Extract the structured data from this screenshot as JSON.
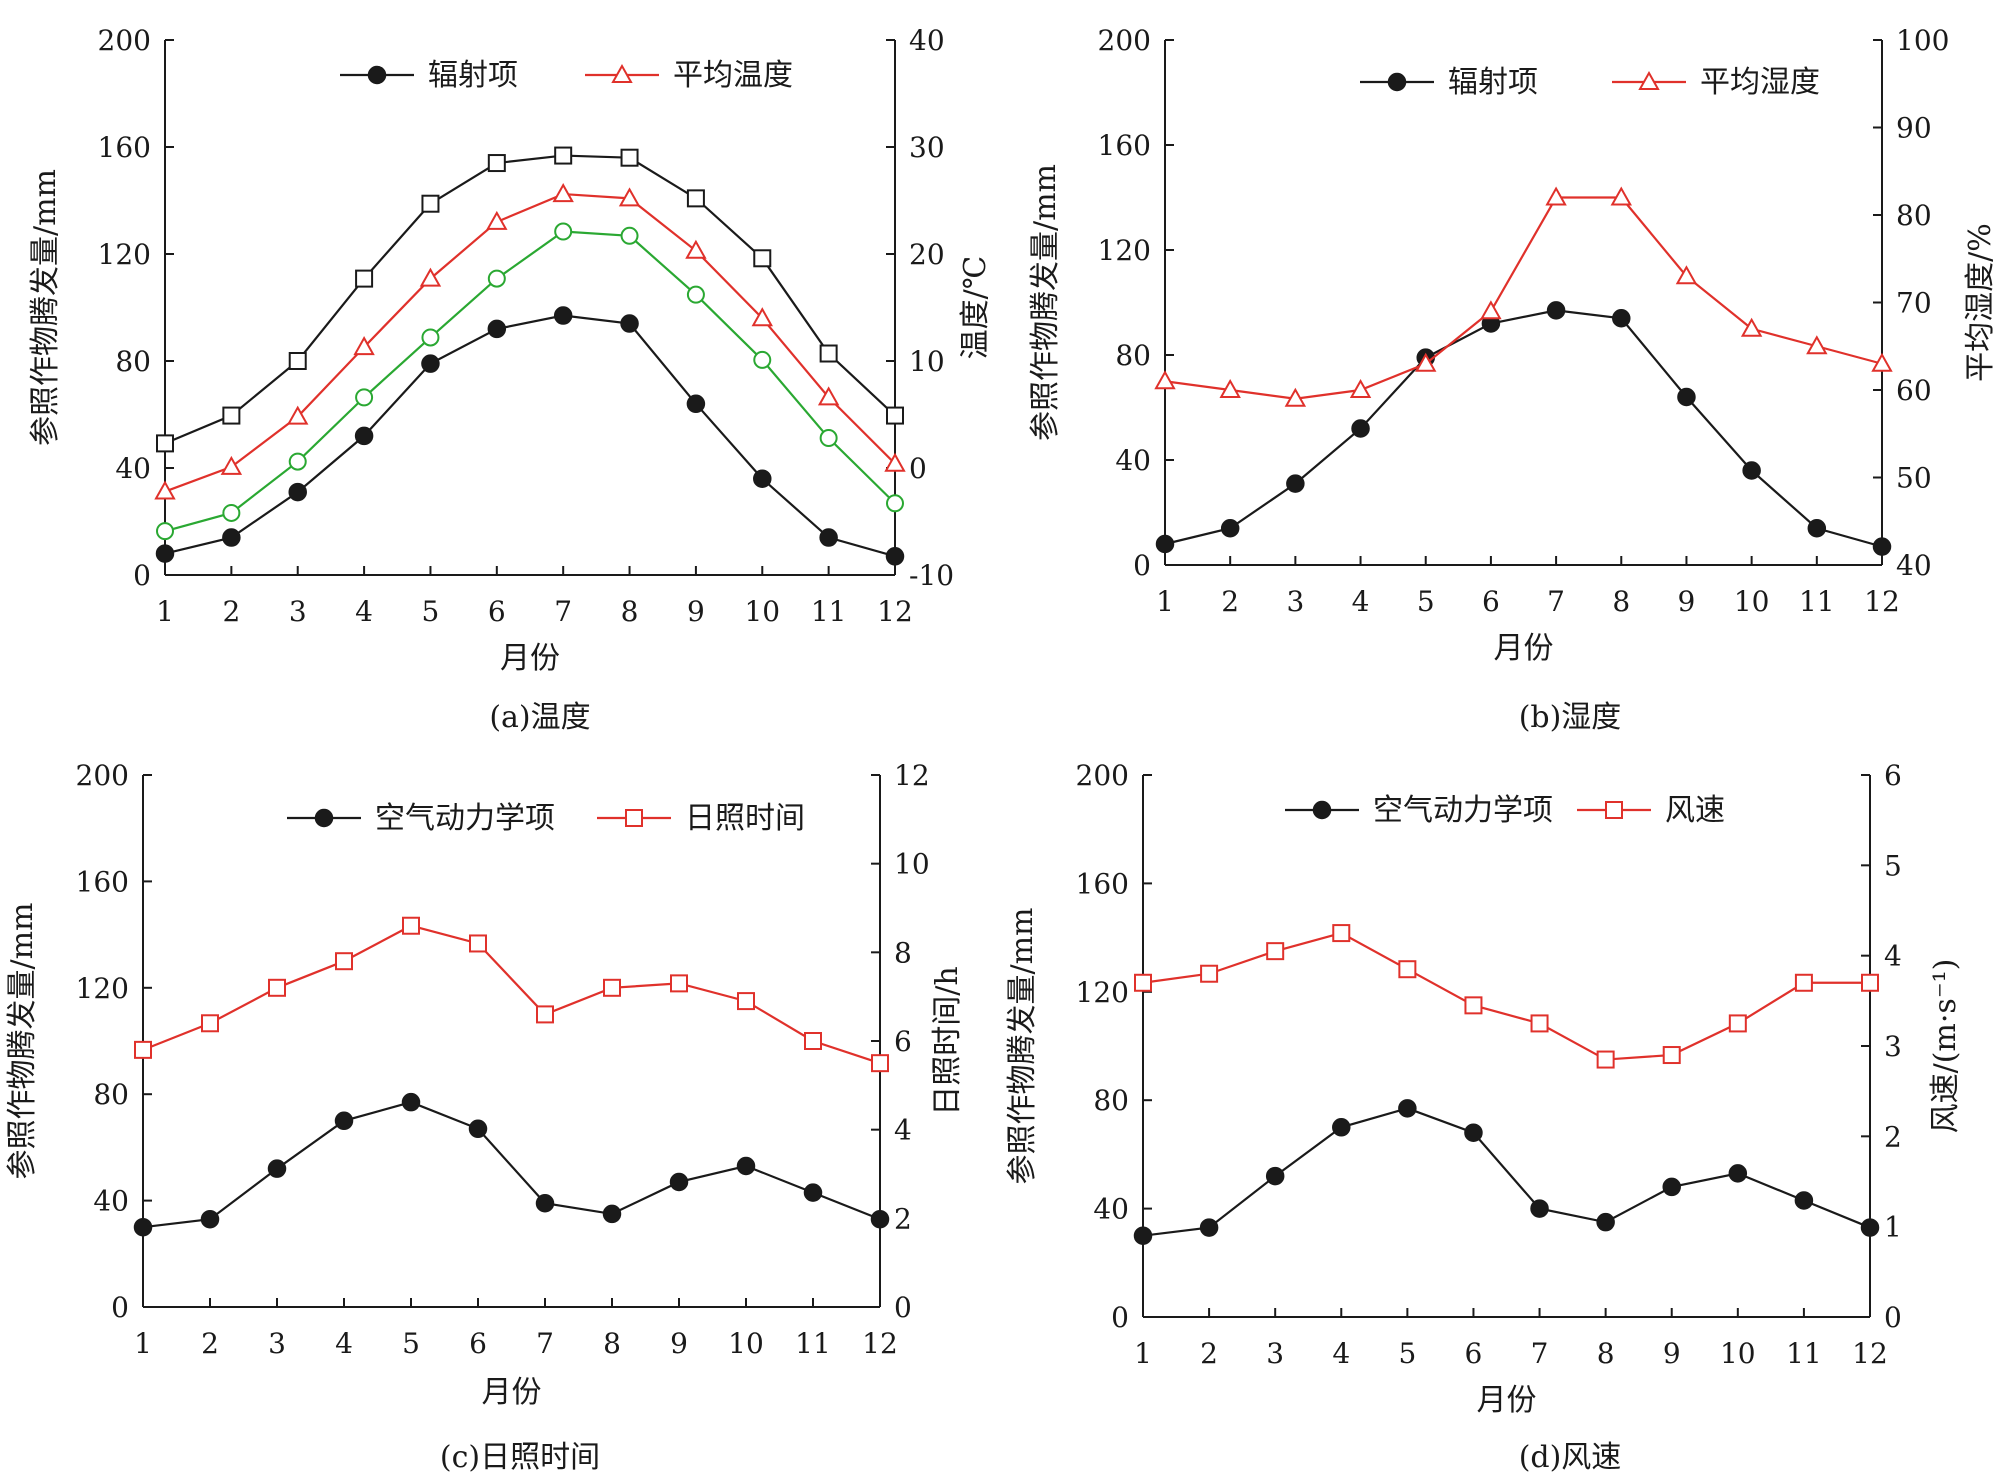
{
  "chart_data": [
    {
      "type": "line",
      "caption": "(a)温度",
      "xlabel": "月份",
      "ylabel": "参照作物腾发量/mm",
      "y2label": "温度/℃",
      "x": [
        1,
        2,
        3,
        4,
        5,
        6,
        7,
        8,
        9,
        10,
        11,
        12
      ],
      "xticks": [
        "1",
        "2",
        "3",
        "4",
        "5",
        "6",
        "7",
        "8",
        "9",
        "10",
        "11",
        "12"
      ],
      "ylim": [
        0,
        200
      ],
      "yticks": [
        0,
        40,
        80,
        120,
        160,
        200
      ],
      "y2lim": [
        -10,
        40
      ],
      "y2ticks": [
        -10,
        0,
        10,
        20,
        30,
        40
      ],
      "legend": [
        {
          "name": "辐射项",
          "color": "#1a1a1a",
          "marker": "circle-filled"
        },
        {
          "name": "平均温度",
          "color": "#e0312b",
          "marker": "triangle"
        }
      ],
      "series": [
        {
          "name": "辐射项",
          "axis": "left",
          "color": "#1a1a1a",
          "marker": "circle-filled",
          "values": [
            8,
            14,
            31,
            52,
            79,
            92,
            97,
            94,
            64,
            36,
            14,
            7
          ]
        },
        {
          "axis": "right",
          "color": "#1a1a1a",
          "marker": "square",
          "values": [
            2.3,
            4.9,
            10,
            17.7,
            24.7,
            28.5,
            29.2,
            29,
            25.2,
            19.6,
            10.7,
            4.9
          ]
        },
        {
          "name": "平均温度",
          "axis": "right",
          "color": "#e0312b",
          "marker": "triangle",
          "values": [
            -2.2,
            0.1,
            4.8,
            11.3,
            17.7,
            23,
            25.6,
            25.2,
            20.3,
            14,
            6.6,
            0.4
          ]
        },
        {
          "axis": "right",
          "color": "#2aa832",
          "marker": "circle",
          "values": [
            -5.9,
            -4.2,
            0.6,
            6.6,
            12.2,
            17.7,
            22.1,
            21.7,
            16.2,
            10.1,
            2.8,
            -3.3
          ]
        }
      ]
    },
    {
      "type": "line",
      "caption": "(b)湿度",
      "xlabel": "月份",
      "ylabel": "参照作物腾发量/mm",
      "y2label": "平均湿度/%",
      "x": [
        1,
        2,
        3,
        4,
        5,
        6,
        7,
        8,
        9,
        10,
        11,
        12
      ],
      "xticks": [
        "1",
        "2",
        "3",
        "4",
        "5",
        "6",
        "7",
        "8",
        "9",
        "10",
        "11",
        "12"
      ],
      "ylim": [
        0,
        200
      ],
      "yticks": [
        0,
        40,
        80,
        120,
        160,
        200
      ],
      "y2lim": [
        40,
        100
      ],
      "y2ticks": [
        40,
        50,
        60,
        70,
        80,
        90,
        100
      ],
      "legend": [
        {
          "name": "辐射项",
          "color": "#1a1a1a",
          "marker": "circle-filled"
        },
        {
          "name": "平均湿度",
          "color": "#e0312b",
          "marker": "triangle"
        }
      ],
      "series": [
        {
          "name": "辐射项",
          "axis": "left",
          "color": "#1a1a1a",
          "marker": "circle-filled",
          "values": [
            8,
            14,
            31,
            52,
            79,
            92,
            97,
            94,
            64,
            36,
            14,
            7
          ]
        },
        {
          "name": "平均湿度",
          "axis": "right",
          "color": "#e0312b",
          "marker": "triangle",
          "values": [
            61,
            60,
            59,
            60,
            63,
            69,
            82,
            82,
            73,
            67,
            65,
            63
          ]
        }
      ]
    },
    {
      "type": "line",
      "caption": "(c)日照时间",
      "xlabel": "月份",
      "ylabel": "参照作物腾发量/mm",
      "y2label": "日照时间/h",
      "x": [
        1,
        2,
        3,
        4,
        5,
        6,
        7,
        8,
        9,
        10,
        11,
        12
      ],
      "xticks": [
        "1",
        "2",
        "3",
        "4",
        "5",
        "6",
        "7",
        "8",
        "9",
        "10",
        "11",
        "12"
      ],
      "ylim": [
        0,
        200
      ],
      "yticks": [
        0,
        40,
        80,
        120,
        160,
        200
      ],
      "y2lim": [
        0,
        12
      ],
      "y2ticks": [
        0,
        2,
        4,
        6,
        8,
        10,
        12
      ],
      "legend": [
        {
          "name": "空气动力学项",
          "color": "#1a1a1a",
          "marker": "circle-filled"
        },
        {
          "name": "日照时间",
          "color": "#e0312b",
          "marker": "square"
        }
      ],
      "series": [
        {
          "name": "空气动力学项",
          "axis": "left",
          "color": "#1a1a1a",
          "marker": "circle-filled",
          "values": [
            30,
            33,
            52,
            70,
            77,
            67,
            39,
            35,
            47,
            53,
            43,
            33
          ]
        },
        {
          "name": "日照时间",
          "axis": "right",
          "color": "#e0312b",
          "marker": "square",
          "values": [
            5.8,
            6.4,
            7.2,
            7.8,
            8.6,
            8.2,
            6.6,
            7.2,
            7.3,
            6.9,
            6,
            5.5
          ]
        }
      ]
    },
    {
      "type": "line",
      "caption": "(d)风速",
      "xlabel": "月份",
      "ylabel": "参照作物腾发量/mm",
      "y2label": "风速/(m·s⁻¹)",
      "x": [
        1,
        2,
        3,
        4,
        5,
        6,
        7,
        8,
        9,
        10,
        11,
        12
      ],
      "xticks": [
        "1",
        "2",
        "3",
        "4",
        "5",
        "6",
        "7",
        "8",
        "9",
        "10",
        "11",
        "12"
      ],
      "ylim": [
        0,
        200
      ],
      "yticks": [
        0,
        40,
        80,
        120,
        160,
        200
      ],
      "y2lim": [
        0,
        6
      ],
      "y2ticks": [
        0,
        1,
        2,
        3,
        4,
        5,
        6
      ],
      "legend": [
        {
          "name": "空气动力学项",
          "color": "#1a1a1a",
          "marker": "circle-filled"
        },
        {
          "name": "风速",
          "color": "#e0312b",
          "marker": "square"
        }
      ],
      "series": [
        {
          "name": "空气动力学项",
          "axis": "left",
          "color": "#1a1a1a",
          "marker": "circle-filled",
          "values": [
            30,
            33,
            52,
            70,
            77,
            68,
            40,
            35,
            48,
            53,
            43,
            33
          ]
        },
        {
          "name": "风速",
          "axis": "right",
          "color": "#e0312b",
          "marker": "square",
          "values": [
            3.7,
            3.8,
            4.05,
            4.25,
            3.85,
            3.45,
            3.25,
            2.85,
            2.9,
            3.25,
            3.7,
            3.7
          ]
        }
      ]
    }
  ]
}
